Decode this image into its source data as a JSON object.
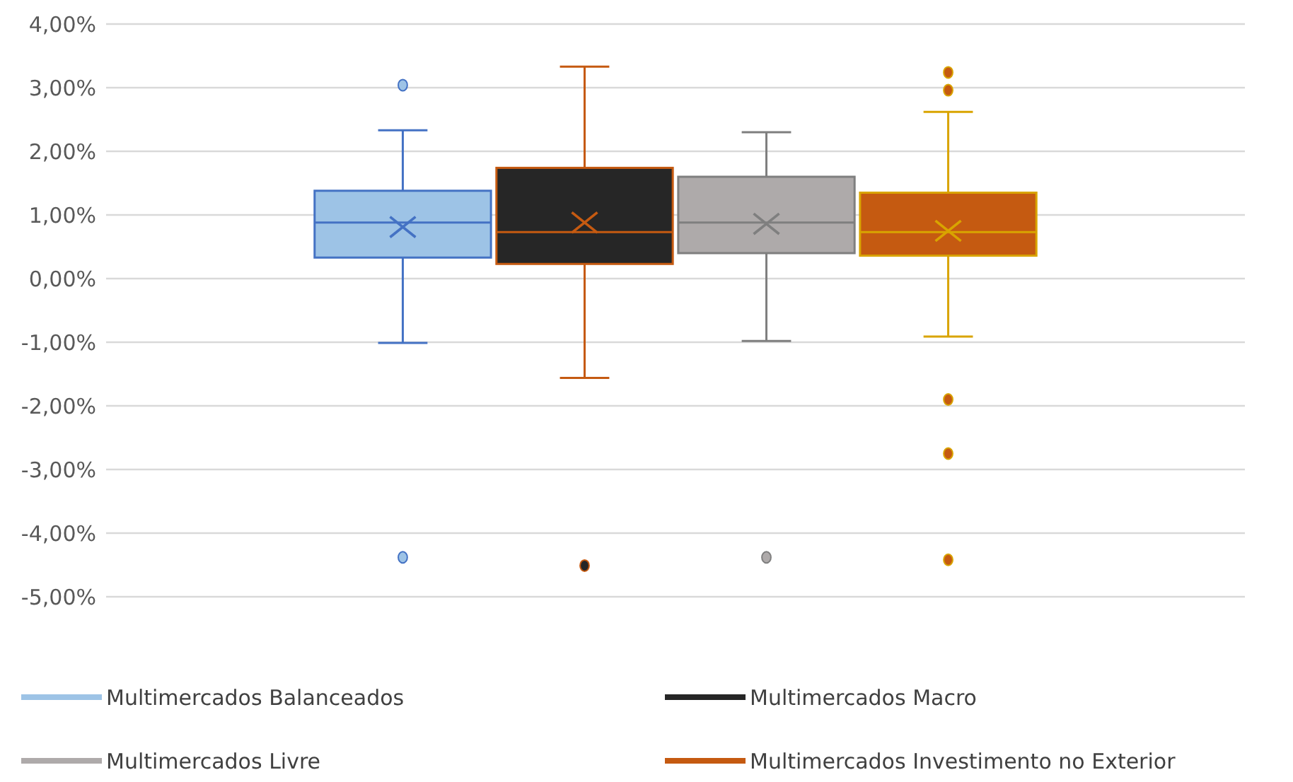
{
  "chart_data": {
    "type": "box",
    "categories": [
      null
    ],
    "ylim": [
      -5,
      4
    ],
    "yticks": [
      {
        "value": -5,
        "label": "-5,00%"
      },
      {
        "value": -4,
        "label": "-4,00%"
      },
      {
        "value": -3,
        "label": "-3,00%"
      },
      {
        "value": -2,
        "label": "-2,00%"
      },
      {
        "value": -1,
        "label": "-1,00%"
      },
      {
        "value": 0,
        "label": "0,00%"
      },
      {
        "value": 1,
        "label": "1,00%"
      },
      {
        "value": 2,
        "label": "2,00%"
      },
      {
        "value": 3,
        "label": "3,00%"
      },
      {
        "value": 4,
        "label": "4,00%"
      }
    ],
    "grid": "y",
    "legend": "bottom",
    "marker": "circle",
    "series": [
      {
        "name": "Multimercados Balanceados",
        "color": "#9dc3e6",
        "boxes": [
          {
            "low": -1.01,
            "q1": 0.33,
            "median": 0.88,
            "q3": 1.38,
            "high": 2.33,
            "mean": 0.81,
            "outliers": [
              3.04,
              -4.38
            ]
          }
        ]
      },
      {
        "name": "Multimercados Macro",
        "color": "#262626",
        "boxes": [
          {
            "low": -1.56,
            "q1": 0.23,
            "median": 0.73,
            "q3": 1.74,
            "high": 3.33,
            "mean": 0.88,
            "outliers": [
              -4.51
            ]
          }
        ]
      },
      {
        "name": "Multimercados Livre",
        "color": "#aeaaaa",
        "boxes": [
          {
            "low": -0.98,
            "q1": 0.4,
            "median": 0.88,
            "q3": 1.6,
            "high": 2.3,
            "mean": 0.86,
            "outliers": [
              -4.38
            ]
          }
        ]
      },
      {
        "name": "Multimercados Investimento no Exterior",
        "color": "#c55a11",
        "boxes": [
          {
            "low": -0.91,
            "q1": 0.36,
            "median": 0.73,
            "q3": 1.35,
            "high": 2.62,
            "mean": 0.75,
            "outliers": [
              3.24,
              2.96,
              -1.9,
              -2.75,
              -4.42
            ]
          }
        ]
      }
    ]
  }
}
